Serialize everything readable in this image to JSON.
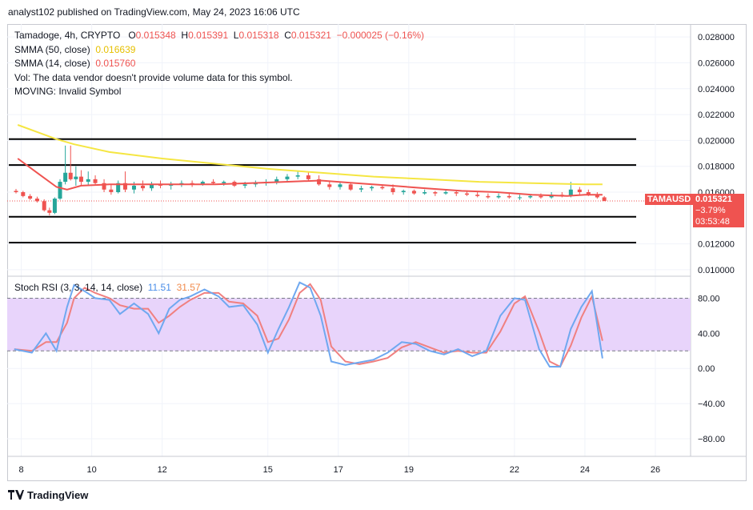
{
  "header": {
    "publish_line": "analyst102 published on TradingView.com, May 24, 2023 16:06 UTC"
  },
  "legend": {
    "symbol_line": "Tamadoge, 4h, CRYPTO",
    "ohlc": {
      "o_label": "O",
      "o": "0.015348",
      "h_label": "H",
      "h": "0.015391",
      "l_label": "L",
      "l": "0.015318",
      "c_label": "C",
      "c": "0.015321",
      "change": "−0.000025 (−0.16%)"
    },
    "smma50_label": "SMMA (50, close)",
    "smma50_value": "0.016639",
    "smma14_label": "SMMA (14, close)",
    "smma14_value": "0.015760",
    "vol_line": "Vol: The data vendor doesn't provide volume data for this symbol.",
    "moving_line": "MOVING: Invalid Symbol"
  },
  "stoch_legend": {
    "label": "Stoch RSI (3, 3, 14, 14, close)",
    "k": "11.51",
    "d": "31.57"
  },
  "price_badge": {
    "symbol": "TAMAUSD",
    "price": "0.015321",
    "change": "−3.79%",
    "countdown": "03:53:48"
  },
  "footer": {
    "brand": "TradingView"
  },
  "colors": {
    "smma50": "#f5e642",
    "smma14": "#ef5350",
    "up": "#26a69a",
    "down": "#ef5350",
    "k_line": "#6fa8f0",
    "d_line": "#f08080",
    "band_fill": "#e8d4fb",
    "badge": "#ef5350"
  },
  "chart_data": [
    {
      "type": "candlestick",
      "title": "Tamadoge, 4h, CRYPTO",
      "x_ticks": [
        "8",
        "10",
        "12",
        "15",
        "17",
        "19",
        "22",
        "24",
        "26"
      ],
      "y_ticks": [
        "0.028000",
        "0.026000",
        "0.024000",
        "0.022000",
        "0.020000",
        "0.018000",
        "0.016000",
        "0.012000",
        "0.010000"
      ],
      "ylim": [
        0.0095,
        0.029
      ],
      "horizontal_levels": [
        0.0201,
        0.0181,
        0.0141,
        0.0121
      ],
      "last_price": 0.015321,
      "smma50": {
        "day": [
          7.9,
          8.5,
          9.0,
          9.5,
          10.5,
          12,
          13.5,
          15,
          16.5,
          18,
          19.5,
          21,
          22.5,
          24,
          24.5
        ],
        "value": [
          0.0212,
          0.0206,
          0.0201,
          0.0197,
          0.0191,
          0.0186,
          0.0182,
          0.0178,
          0.0175,
          0.0172,
          0.017,
          0.0168,
          0.0167,
          0.0166,
          0.0166
        ]
      },
      "smma14": {
        "day": [
          7.9,
          8.5,
          9.0,
          9.3,
          9.7,
          10.5,
          11.5,
          12.5,
          13.5,
          14.5,
          15.5,
          16.5,
          17.5,
          18.5,
          19.5,
          20.5,
          21.5,
          22.5,
          23.5,
          24.0,
          24.5
        ],
        "value": [
          0.0186,
          0.0174,
          0.0164,
          0.0162,
          0.0165,
          0.0166,
          0.0166,
          0.0166,
          0.0166,
          0.0167,
          0.0168,
          0.0169,
          0.0167,
          0.0165,
          0.0163,
          0.0161,
          0.016,
          0.0158,
          0.0157,
          0.0158,
          0.0158
        ]
      },
      "candles": [
        {
          "d": 7.85,
          "o": 0.0161,
          "h": 0.01625,
          "l": 0.0159,
          "c": 0.016
        },
        {
          "d": 8.05,
          "o": 0.016,
          "h": 0.0161,
          "l": 0.0156,
          "c": 0.0157
        },
        {
          "d": 8.25,
          "o": 0.0157,
          "h": 0.01585,
          "l": 0.0154,
          "c": 0.0155
        },
        {
          "d": 8.45,
          "o": 0.0155,
          "h": 0.01565,
          "l": 0.0152,
          "c": 0.0153
        },
        {
          "d": 8.65,
          "o": 0.0153,
          "h": 0.01545,
          "l": 0.0145,
          "c": 0.0146
        },
        {
          "d": 8.8,
          "o": 0.0146,
          "h": 0.0148,
          "l": 0.0142,
          "c": 0.0144
        },
        {
          "d": 8.95,
          "o": 0.0144,
          "h": 0.0156,
          "l": 0.0143,
          "c": 0.0155
        },
        {
          "d": 9.1,
          "o": 0.0155,
          "h": 0.017,
          "l": 0.0154,
          "c": 0.0168
        },
        {
          "d": 9.25,
          "o": 0.0168,
          "h": 0.0196,
          "l": 0.0166,
          "c": 0.0175
        },
        {
          "d": 9.4,
          "o": 0.0175,
          "h": 0.0196,
          "l": 0.0169,
          "c": 0.017
        },
        {
          "d": 9.55,
          "o": 0.017,
          "h": 0.018,
          "l": 0.0165,
          "c": 0.0172
        },
        {
          "d": 9.7,
          "o": 0.0172,
          "h": 0.0177,
          "l": 0.0165,
          "c": 0.0168
        },
        {
          "d": 9.9,
          "o": 0.0168,
          "h": 0.0176,
          "l": 0.0165,
          "c": 0.017
        },
        {
          "d": 10.1,
          "o": 0.017,
          "h": 0.0173,
          "l": 0.0166,
          "c": 0.0167
        },
        {
          "d": 10.35,
          "o": 0.0167,
          "h": 0.017,
          "l": 0.016,
          "c": 0.0162
        },
        {
          "d": 10.55,
          "o": 0.0162,
          "h": 0.0166,
          "l": 0.0158,
          "c": 0.016
        },
        {
          "d": 10.75,
          "o": 0.016,
          "h": 0.0169,
          "l": 0.0159,
          "c": 0.0167
        },
        {
          "d": 10.95,
          "o": 0.0167,
          "h": 0.0176,
          "l": 0.016,
          "c": 0.0162
        },
        {
          "d": 11.2,
          "o": 0.0162,
          "h": 0.0168,
          "l": 0.0159,
          "c": 0.0165
        },
        {
          "d": 11.45,
          "o": 0.0165,
          "h": 0.0169,
          "l": 0.0161,
          "c": 0.0163
        },
        {
          "d": 11.7,
          "o": 0.0163,
          "h": 0.0168,
          "l": 0.0161,
          "c": 0.0166
        },
        {
          "d": 11.95,
          "o": 0.0166,
          "h": 0.0169,
          "l": 0.0163,
          "c": 0.0165
        },
        {
          "d": 12.25,
          "o": 0.0165,
          "h": 0.0168,
          "l": 0.0162,
          "c": 0.0166
        },
        {
          "d": 12.55,
          "o": 0.0166,
          "h": 0.0169,
          "l": 0.0164,
          "c": 0.0167
        },
        {
          "d": 12.85,
          "o": 0.0167,
          "h": 0.0169,
          "l": 0.0164,
          "c": 0.0166
        },
        {
          "d": 13.15,
          "o": 0.0166,
          "h": 0.0169,
          "l": 0.0165,
          "c": 0.0168
        },
        {
          "d": 13.45,
          "o": 0.0168,
          "h": 0.017,
          "l": 0.0166,
          "c": 0.0167
        },
        {
          "d": 13.75,
          "o": 0.0167,
          "h": 0.0169,
          "l": 0.0165,
          "c": 0.0168
        },
        {
          "d": 14.05,
          "o": 0.0168,
          "h": 0.0169,
          "l": 0.0164,
          "c": 0.0165
        },
        {
          "d": 14.35,
          "o": 0.0165,
          "h": 0.0168,
          "l": 0.0163,
          "c": 0.0166
        },
        {
          "d": 14.65,
          "o": 0.0166,
          "h": 0.0169,
          "l": 0.0164,
          "c": 0.0167
        },
        {
          "d": 14.95,
          "o": 0.0167,
          "h": 0.017,
          "l": 0.0165,
          "c": 0.0168
        },
        {
          "d": 15.25,
          "o": 0.0168,
          "h": 0.0172,
          "l": 0.0166,
          "c": 0.017
        },
        {
          "d": 15.55,
          "o": 0.017,
          "h": 0.0174,
          "l": 0.0168,
          "c": 0.0172
        },
        {
          "d": 15.85,
          "o": 0.0172,
          "h": 0.0176,
          "l": 0.017,
          "c": 0.0173
        },
        {
          "d": 16.15,
          "o": 0.0173,
          "h": 0.0176,
          "l": 0.0169,
          "c": 0.017
        },
        {
          "d": 16.45,
          "o": 0.017,
          "h": 0.0173,
          "l": 0.0165,
          "c": 0.0166
        },
        {
          "d": 16.75,
          "o": 0.0166,
          "h": 0.0169,
          "l": 0.0162,
          "c": 0.0164
        },
        {
          "d": 17.05,
          "o": 0.0164,
          "h": 0.0168,
          "l": 0.0162,
          "c": 0.0166
        },
        {
          "d": 17.35,
          "o": 0.0166,
          "h": 0.0167,
          "l": 0.0161,
          "c": 0.0162
        },
        {
          "d": 17.65,
          "o": 0.0162,
          "h": 0.0165,
          "l": 0.016,
          "c": 0.0163
        },
        {
          "d": 17.95,
          "o": 0.0163,
          "h": 0.0165,
          "l": 0.0161,
          "c": 0.0164
        },
        {
          "d": 18.25,
          "o": 0.0164,
          "h": 0.0166,
          "l": 0.0162,
          "c": 0.0163
        },
        {
          "d": 18.55,
          "o": 0.0163,
          "h": 0.0166,
          "l": 0.0158,
          "c": 0.016
        },
        {
          "d": 18.85,
          "o": 0.016,
          "h": 0.0162,
          "l": 0.0158,
          "c": 0.0161
        },
        {
          "d": 19.15,
          "o": 0.0161,
          "h": 0.0162,
          "l": 0.0158,
          "c": 0.0159
        },
        {
          "d": 19.45,
          "o": 0.0159,
          "h": 0.0162,
          "l": 0.0158,
          "c": 0.016
        },
        {
          "d": 19.75,
          "o": 0.016,
          "h": 0.0161,
          "l": 0.0157,
          "c": 0.0159
        },
        {
          "d": 20.05,
          "o": 0.0159,
          "h": 0.0162,
          "l": 0.0158,
          "c": 0.016
        },
        {
          "d": 20.35,
          "o": 0.016,
          "h": 0.0161,
          "l": 0.0157,
          "c": 0.0159
        },
        {
          "d": 20.65,
          "o": 0.0159,
          "h": 0.0161,
          "l": 0.0157,
          "c": 0.0158
        },
        {
          "d": 20.95,
          "o": 0.0158,
          "h": 0.016,
          "l": 0.0156,
          "c": 0.0157
        },
        {
          "d": 21.25,
          "o": 0.0157,
          "h": 0.0159,
          "l": 0.0155,
          "c": 0.0156
        },
        {
          "d": 21.55,
          "o": 0.0156,
          "h": 0.0159,
          "l": 0.0155,
          "c": 0.0157
        },
        {
          "d": 21.85,
          "o": 0.0157,
          "h": 0.0159,
          "l": 0.0155,
          "c": 0.0156
        },
        {
          "d": 22.15,
          "o": 0.0156,
          "h": 0.0158,
          "l": 0.0154,
          "c": 0.0156
        },
        {
          "d": 22.45,
          "o": 0.0156,
          "h": 0.0158,
          "l": 0.0155,
          "c": 0.0157
        },
        {
          "d": 22.75,
          "o": 0.0157,
          "h": 0.0159,
          "l": 0.0155,
          "c": 0.0156
        },
        {
          "d": 23.05,
          "o": 0.0156,
          "h": 0.016,
          "l": 0.0155,
          "c": 0.0158
        },
        {
          "d": 23.35,
          "o": 0.0158,
          "h": 0.016,
          "l": 0.0156,
          "c": 0.0157
        },
        {
          "d": 23.6,
          "o": 0.0157,
          "h": 0.0168,
          "l": 0.0156,
          "c": 0.0162
        },
        {
          "d": 23.85,
          "o": 0.0162,
          "h": 0.0164,
          "l": 0.0158,
          "c": 0.016
        },
        {
          "d": 24.1,
          "o": 0.016,
          "h": 0.0162,
          "l": 0.0157,
          "c": 0.0158
        },
        {
          "d": 24.35,
          "o": 0.0158,
          "h": 0.016,
          "l": 0.0155,
          "c": 0.0156
        },
        {
          "d": 24.55,
          "o": 0.0156,
          "h": 0.0157,
          "l": 0.0153,
          "c": 0.01532
        }
      ]
    },
    {
      "type": "line",
      "title": "Stoch RSI (3, 3, 14, 14, close)",
      "y_ticks": [
        "80.00",
        "40.00",
        "0.00",
        "−40.00",
        "−80.00"
      ],
      "ylim": [
        -100,
        105
      ],
      "band": [
        20,
        80
      ],
      "x": [
        7.8,
        8.3,
        8.7,
        9.0,
        9.3,
        9.5,
        9.8,
        10.1,
        10.5,
        10.8,
        11.2,
        11.6,
        11.9,
        12.2,
        12.5,
        12.8,
        13.2,
        13.6,
        13.9,
        14.3,
        14.7,
        15.0,
        15.3,
        15.6,
        15.9,
        16.2,
        16.5,
        16.8,
        17.2,
        17.6,
        18.0,
        18.4,
        18.8,
        19.2,
        19.6,
        20.0,
        20.4,
        20.8,
        21.2,
        21.6,
        22.0,
        22.3,
        22.7,
        23.0,
        23.3,
        23.6,
        23.9,
        24.2,
        24.5
      ],
      "series": [
        {
          "name": "K",
          "values": [
            22,
            18,
            40,
            20,
            70,
            95,
            88,
            80,
            78,
            62,
            74,
            62,
            40,
            68,
            78,
            82,
            90,
            82,
            70,
            72,
            50,
            18,
            45,
            70,
            98,
            92,
            60,
            8,
            4,
            7,
            10,
            18,
            30,
            28,
            20,
            16,
            22,
            14,
            20,
            60,
            80,
            78,
            22,
            2,
            2,
            45,
            70,
            88,
            11.51
          ]
        },
        {
          "name": "D",
          "values": [
            22,
            20,
            30,
            30,
            52,
            80,
            92,
            86,
            80,
            72,
            68,
            68,
            52,
            60,
            70,
            78,
            86,
            86,
            76,
            74,
            60,
            30,
            34,
            56,
            86,
            96,
            78,
            25,
            8,
            5,
            8,
            12,
            24,
            30,
            24,
            18,
            20,
            18,
            18,
            42,
            74,
            82,
            42,
            8,
            2,
            26,
            58,
            82,
            31.57
          ]
        }
      ]
    }
  ]
}
